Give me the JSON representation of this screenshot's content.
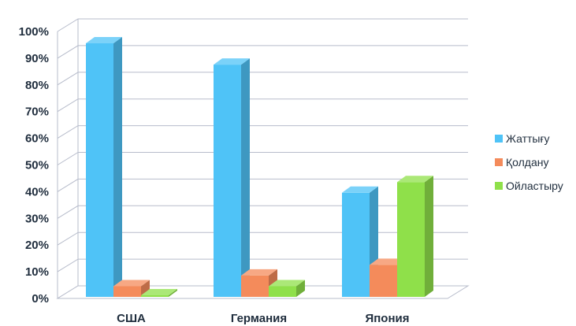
{
  "chart_data": {
    "type": "bar",
    "style": "3d-clustered-column",
    "categories": [
      "США",
      "Германия",
      "Япония"
    ],
    "series": [
      {
        "name": "Жаттығу",
        "values": [
          95,
          87,
          39
        ],
        "color": "#4fc3f7"
      },
      {
        "name": "Қолдану",
        "values": [
          4,
          8,
          12
        ],
        "color": "#f48b5b"
      },
      {
        "name": "Ойластыру",
        "values": [
          0,
          4,
          43
        ],
        "color": "#8fe04a"
      }
    ],
    "y_ticks": [
      "0%",
      "10%",
      "20%",
      "30%",
      "40%",
      "50%",
      "60%",
      "70%",
      "80%",
      "90%",
      "100%"
    ],
    "ylim": [
      0,
      100
    ],
    "grid": true,
    "legend_position": "right"
  }
}
